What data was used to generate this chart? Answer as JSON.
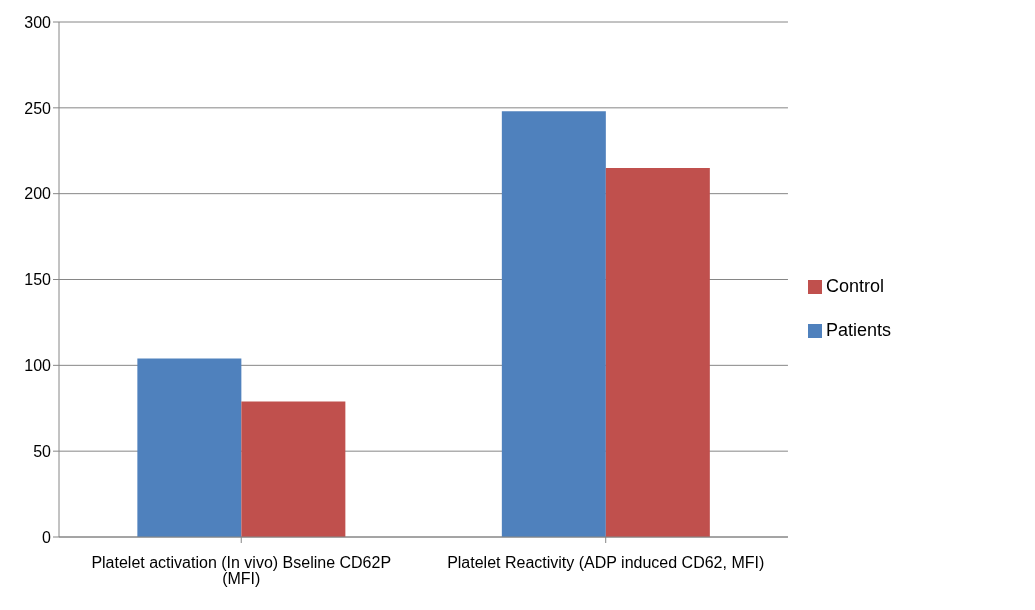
{
  "chart_data": {
    "type": "bar",
    "categories": [
      "Platelet activation (In vivo) Bseline CD62P (MFI)",
      "Platelet Reactivity (ADP induced CD62, MFI)"
    ],
    "series": [
      {
        "name": "Patients",
        "color": "#4f81bd",
        "values": [
          104,
          248
        ]
      },
      {
        "name": "Control",
        "color": "#c0504d",
        "values": [
          79,
          215
        ]
      }
    ],
    "ylim": [
      0,
      300
    ],
    "yticks": [
      0,
      50,
      100,
      150,
      200,
      250,
      300
    ],
    "grid": "y",
    "legend": "right"
  }
}
